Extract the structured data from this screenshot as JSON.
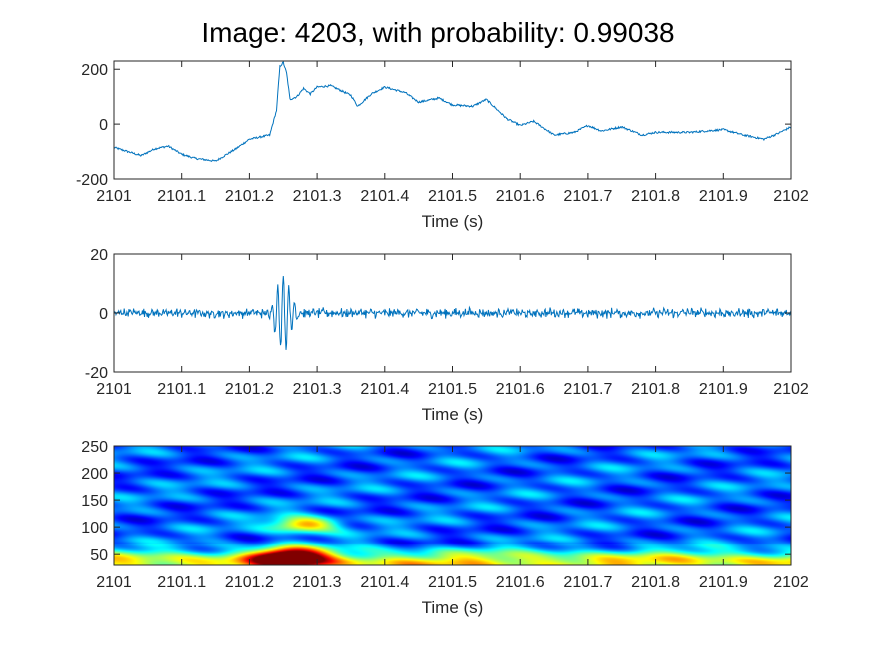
{
  "title": "Image: 4203, with probability: 0.99038",
  "chart_data": [
    {
      "type": "line",
      "series_color": "#0072BD",
      "x_range": [
        2101,
        2102
      ],
      "xlim": [
        2101,
        2102
      ],
      "ylim": [
        -200,
        230
      ],
      "x_ticks": [
        "2101",
        "2101.1",
        "2101.2",
        "2101.3",
        "2101.4",
        "2101.5",
        "2101.6",
        "2101.7",
        "2101.8",
        "2101.9",
        "2102"
      ],
      "y_ticks": [
        "200",
        "0",
        "-200"
      ],
      "xlabel": "Time (s)",
      "ylabel": "",
      "trend": [
        [
          2101.0,
          -85
        ],
        [
          2101.02,
          -100
        ],
        [
          2101.04,
          -115
        ],
        [
          2101.06,
          -90
        ],
        [
          2101.08,
          -80
        ],
        [
          2101.1,
          -110
        ],
        [
          2101.12,
          -125
        ],
        [
          2101.15,
          -135
        ],
        [
          2101.18,
          -90
        ],
        [
          2101.2,
          -55
        ],
        [
          2101.23,
          -40
        ],
        [
          2101.24,
          50
        ],
        [
          2101.245,
          210
        ],
        [
          2101.25,
          225
        ],
        [
          2101.255,
          185
        ],
        [
          2101.26,
          90
        ],
        [
          2101.27,
          100
        ],
        [
          2101.28,
          130
        ],
        [
          2101.29,
          110
        ],
        [
          2101.3,
          135
        ],
        [
          2101.32,
          140
        ],
        [
          2101.35,
          105
        ],
        [
          2101.36,
          65
        ],
        [
          2101.38,
          110
        ],
        [
          2101.4,
          135
        ],
        [
          2101.43,
          115
        ],
        [
          2101.45,
          80
        ],
        [
          2101.48,
          95
        ],
        [
          2101.5,
          70
        ],
        [
          2101.53,
          65
        ],
        [
          2101.55,
          90
        ],
        [
          2101.58,
          20
        ],
        [
          2101.6,
          -5
        ],
        [
          2101.62,
          10
        ],
        [
          2101.65,
          -40
        ],
        [
          2101.68,
          -30
        ],
        [
          2101.7,
          -5
        ],
        [
          2101.72,
          -25
        ],
        [
          2101.75,
          -10
        ],
        [
          2101.78,
          -40
        ],
        [
          2101.8,
          -30
        ],
        [
          2101.85,
          -30
        ],
        [
          2101.9,
          -20
        ],
        [
          2101.93,
          -40
        ],
        [
          2101.96,
          -55
        ],
        [
          2101.98,
          -35
        ],
        [
          2102.0,
          -10
        ]
      ]
    },
    {
      "type": "line",
      "series_color": "#0072BD",
      "x_range": [
        2101,
        2102
      ],
      "xlim": [
        2101,
        2102
      ],
      "ylim": [
        -20,
        20
      ],
      "x_ticks": [
        "2101",
        "2101.1",
        "2101.2",
        "2101.3",
        "2101.4",
        "2101.5",
        "2101.6",
        "2101.7",
        "2101.8",
        "2101.9",
        "2102"
      ],
      "y_ticks": [
        "20",
        "0",
        "-20"
      ],
      "xlabel": "Time (s)",
      "ylabel": "",
      "noise_amplitude": 2,
      "burst": {
        "center": 2101.25,
        "peak": 13,
        "width": 0.015,
        "frequency_hz": 120
      }
    },
    {
      "type": "heatmap",
      "x_range": [
        2101,
        2102
      ],
      "xlim": [
        2101,
        2102
      ],
      "ylim": [
        30,
        250
      ],
      "x_ticks": [
        "2101",
        "2101.1",
        "2101.2",
        "2101.3",
        "2101.4",
        "2101.5",
        "2101.6",
        "2101.7",
        "2101.8",
        "2101.9",
        "2102"
      ],
      "y_ticks": [
        "250",
        "200",
        "150",
        "100",
        "50"
      ],
      "xlabel": "Time (s)",
      "ylabel": "",
      "colormap": "jet",
      "hotspots": [
        {
          "x": 2101.26,
          "y": 45,
          "intensity": 1.0
        },
        {
          "x": 2101.28,
          "y": 105,
          "intensity": 0.62
        }
      ]
    }
  ]
}
